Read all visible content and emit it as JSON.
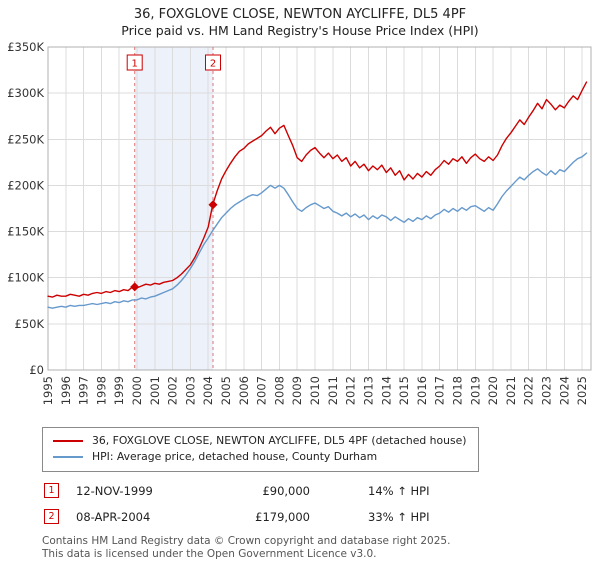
{
  "title": "36, FOXGLOVE CLOSE, NEWTON AYCLIFFE, DL5 4PF",
  "subtitle": "Price paid vs. HM Land Registry's House Price Index (HPI)",
  "colors": {
    "property_line": "#cc0000",
    "hpi_line": "#6699cc",
    "band_fill": "#dde6f5",
    "dashed_line": "#dd7777",
    "grid": "#dcdcdc",
    "spine": "#b0b0b0"
  },
  "legend": [
    {
      "label": "36, FOXGLOVE CLOSE, NEWTON AYCLIFFE, DL5 4PF (detached house)",
      "color": "#cc0000"
    },
    {
      "label": "HPI: Average price, detached house, County Durham",
      "color": "#6699cc"
    }
  ],
  "transactions": [
    {
      "num": "1",
      "date": "12-NOV-1999",
      "price": "£90,000",
      "hpi": "14% ↑ HPI"
    },
    {
      "num": "2",
      "date": "08-APR-2004",
      "price": "£179,000",
      "hpi": "33% ↑ HPI"
    }
  ],
  "footer": {
    "line1": "Contains HM Land Registry data © Crown copyright and database right 2025.",
    "line2": "This data is licensed under the Open Government Licence v3.0."
  },
  "chart_data": {
    "type": "line",
    "x_range": [
      1995,
      2025.5
    ],
    "y_range": [
      0,
      350
    ],
    "y_unit": "£K",
    "y_tick_labels": [
      "£0",
      "£50K",
      "£100K",
      "£150K",
      "£200K",
      "£250K",
      "£300K",
      "£350K"
    ],
    "x_tick_labels": [
      1995,
      1996,
      1997,
      1998,
      1999,
      2000,
      2001,
      2002,
      2003,
      2004,
      2005,
      2006,
      2007,
      2008,
      2009,
      2010,
      2011,
      2012,
      2013,
      2014,
      2015,
      2016,
      2017,
      2018,
      2019,
      2020,
      2021,
      2022,
      2023,
      2024,
      2025
    ],
    "grid": true,
    "legend_position": "bottom",
    "band": {
      "from": 1999.87,
      "to": 2004.27
    },
    "markers": [
      {
        "label": "1",
        "x": 1999.87,
        "y": 90
      },
      {
        "label": "2",
        "x": 2004.27,
        "y": 179
      }
    ],
    "series": [
      {
        "name": "36, FOXGLOVE CLOSE, NEWTON AYCLIFFE, DL5 4PF (detached house)",
        "color": "#cc0000",
        "start": 1995,
        "step": 0.25,
        "values": [
          80,
          79,
          81,
          80,
          80,
          82,
          81,
          80,
          82,
          81,
          83,
          84,
          83,
          85,
          84,
          86,
          85,
          87,
          86,
          90,
          89,
          91,
          93,
          92,
          94,
          93,
          95,
          96,
          97,
          100,
          104,
          109,
          114,
          122,
          132,
          143,
          155,
          179,
          194,
          207,
          216,
          224,
          231,
          237,
          240,
          245,
          248,
          251,
          254,
          259,
          263,
          256,
          262,
          265,
          254,
          243,
          230,
          226,
          233,
          238,
          241,
          235,
          230,
          235,
          229,
          233,
          226,
          230,
          221,
          226,
          219,
          223,
          216,
          221,
          217,
          222,
          214,
          219,
          211,
          216,
          206,
          212,
          207,
          213,
          209,
          215,
          211,
          217,
          221,
          227,
          223,
          229,
          226,
          231,
          224,
          230,
          234,
          229,
          226,
          231,
          227,
          233,
          243,
          251,
          257,
          264,
          271,
          266,
          274,
          281,
          289,
          283,
          293,
          288,
          282,
          287,
          284,
          291,
          297,
          293,
          303,
          312
        ]
      },
      {
        "name": "HPI: Average price, detached house, County Durham",
        "color": "#6699cc",
        "start": 1995,
        "step": 0.25,
        "values": [
          68,
          67,
          68,
          69,
          68,
          70,
          69,
          70,
          70,
          71,
          72,
          71,
          72,
          73,
          72,
          74,
          73,
          75,
          74,
          76,
          76,
          78,
          77,
          79,
          80,
          82,
          84,
          86,
          88,
          92,
          97,
          103,
          110,
          118,
          127,
          136,
          143,
          151,
          158,
          165,
          170,
          175,
          179,
          182,
          185,
          188,
          190,
          189,
          192,
          196,
          200,
          197,
          200,
          197,
          190,
          182,
          175,
          172,
          176,
          179,
          181,
          178,
          175,
          177,
          172,
          170,
          167,
          170,
          166,
          169,
          165,
          168,
          163,
          167,
          164,
          168,
          166,
          162,
          166,
          163,
          160,
          164,
          161,
          165,
          163,
          167,
          164,
          168,
          170,
          174,
          171,
          175,
          172,
          176,
          173,
          177,
          178,
          175,
          172,
          176,
          173,
          180,
          188,
          194,
          199,
          204,
          209,
          206,
          211,
          215,
          218,
          214,
          211,
          216,
          212,
          217,
          215,
          220,
          225,
          229,
          231,
          235
        ]
      }
    ]
  }
}
